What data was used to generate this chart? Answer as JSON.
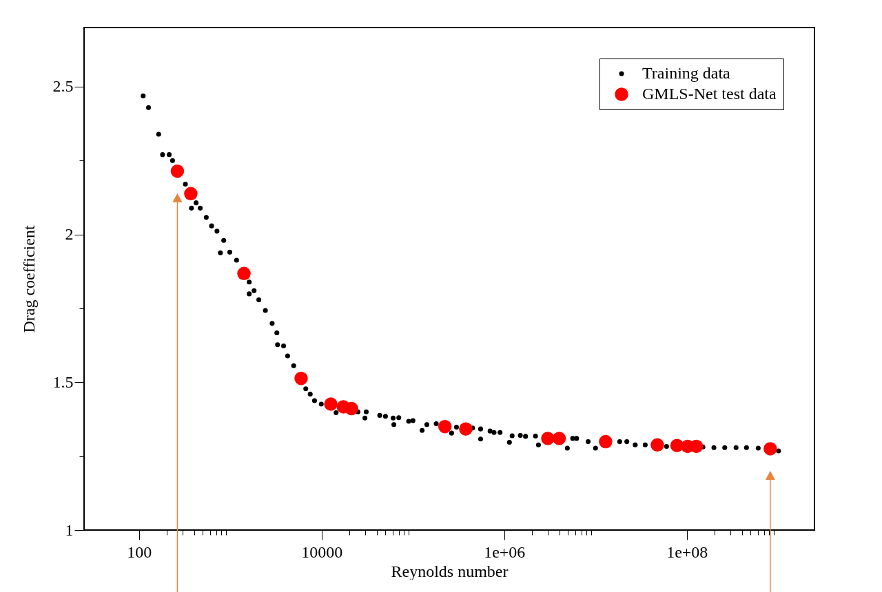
{
  "chart_data": {
    "type": "scatter",
    "xlabel": "Reynolds number",
    "ylabel": "Drag coefficient",
    "log": "x",
    "xlim": [
      25,
      2500000000
    ],
    "ylim": [
      1,
      2.7
    ],
    "xticks": [
      {
        "value": 100,
        "label": "100"
      },
      {
        "value": 200,
        "label": null
      },
      {
        "value": 300,
        "label": null
      },
      {
        "value": 400,
        "label": null
      },
      {
        "value": 500,
        "label": null
      },
      {
        "value": 600,
        "label": null
      },
      {
        "value": 700,
        "label": null
      },
      {
        "value": 800,
        "label": null
      },
      {
        "value": 900,
        "label": null
      },
      {
        "value": 10000,
        "label": "10000"
      },
      {
        "value": 20000,
        "label": null
      },
      {
        "value": 30000,
        "label": null
      },
      {
        "value": 40000,
        "label": null
      },
      {
        "value": 50000,
        "label": null
      },
      {
        "value": 60000,
        "label": null
      },
      {
        "value": 70000,
        "label": null
      },
      {
        "value": 80000,
        "label": null
      },
      {
        "value": 90000,
        "label": null
      },
      {
        "value": 1000000,
        "label": "1e+06"
      },
      {
        "value": 2000000,
        "label": null
      },
      {
        "value": 3000000,
        "label": null
      },
      {
        "value": 4000000,
        "label": null
      },
      {
        "value": 5000000,
        "label": null
      },
      {
        "value": 6000000,
        "label": null
      },
      {
        "value": 7000000,
        "label": null
      },
      {
        "value": 8000000,
        "label": null
      },
      {
        "value": 9000000,
        "label": null
      },
      {
        "value": 100000000,
        "label": "1e+08"
      },
      {
        "value": 200000000,
        "label": null
      },
      {
        "value": 300000000,
        "label": null
      },
      {
        "value": 400000000,
        "label": null
      },
      {
        "value": 500000000,
        "label": null
      },
      {
        "value": 600000000,
        "label": null
      },
      {
        "value": 700000000,
        "label": null
      },
      {
        "value": 800000000,
        "label": null
      },
      {
        "value": 900000000,
        "label": null
      }
    ],
    "yticks": [
      1,
      {
        "value": 1.25,
        "label": null
      },
      1.5,
      {
        "value": 1.75,
        "label": null
      },
      2,
      {
        "value": 2.25,
        "label": null
      },
      2.5
    ],
    "legend": "top right",
    "grid": false,
    "marker": "circle",
    "series": [
      {
        "name": "Training data",
        "color": "#000000",
        "x": [
          111,
          127,
          164,
          181,
          214,
          233,
          322,
          375,
          422,
          468,
          545,
          623,
          714,
          778,
          847,
          986,
          1170,
          1610,
          1610,
          1820,
          2050,
          2420,
          2870,
          3230,
          3290,
          3830,
          4240,
          4940,
          6700,
          7500,
          8360,
          9910,
          14400,
          25000,
          29800,
          30800,
          43300,
          50000,
          60700,
          61800,
          70000,
          89800,
          100000,
          126000,
          142000,
          180000,
          265000,
          300000,
          450000,
          551000,
          551000,
          700000,
          773000,
          900000,
          1140000,
          1220000,
          1500000,
          1710000,
          2200000,
          2370000,
          4910000,
          5620000,
          6200000,
          8300000,
          10000000,
          18400000,
          22000000,
          27200000,
          35000000,
          60000000,
          150000000,
          198000000,
          260000000,
          346000000,
          450000000,
          605000000,
          1010000000
        ],
        "values": [
          2.469,
          2.429,
          2.339,
          2.27,
          2.27,
          2.25,
          2.17,
          2.089,
          2.107,
          2.089,
          2.058,
          2.029,
          2.011,
          1.938,
          1.98,
          1.94,
          1.913,
          1.839,
          1.799,
          1.81,
          1.779,
          1.743,
          1.699,
          1.667,
          1.627,
          1.623,
          1.589,
          1.556,
          1.478,
          1.46,
          1.438,
          1.426,
          1.397,
          1.4,
          1.379,
          1.4,
          1.388,
          1.385,
          1.379,
          1.357,
          1.38,
          1.368,
          1.37,
          1.337,
          1.357,
          1.36,
          1.328,
          1.348,
          1.345,
          1.342,
          1.308,
          1.335,
          1.33,
          1.33,
          1.297,
          1.319,
          1.32,
          1.317,
          1.318,
          1.288,
          1.277,
          1.31,
          1.31,
          1.299,
          1.277,
          1.299,
          1.299,
          1.288,
          1.288,
          1.283,
          1.281,
          1.279,
          1.279,
          1.279,
          1.279,
          1.277,
          1.268
        ]
      },
      {
        "name": "GMLS-Net test data",
        "color": "#ff0000",
        "x": [
          263,
          369,
          1410,
          5960,
          12600,
          17300,
          21200,
          224000,
          379000,
          3000000,
          4000000,
          12900000,
          47500000,
          78000000,
          102000000,
          127000000,
          820000000
        ],
        "values": [
          2.214,
          2.138,
          1.868,
          1.513,
          1.426,
          1.417,
          1.411,
          1.35,
          1.342,
          1.31,
          1.31,
          1.299,
          1.288,
          1.286,
          1.283,
          1.283,
          1.275
        ]
      }
    ]
  }
}
